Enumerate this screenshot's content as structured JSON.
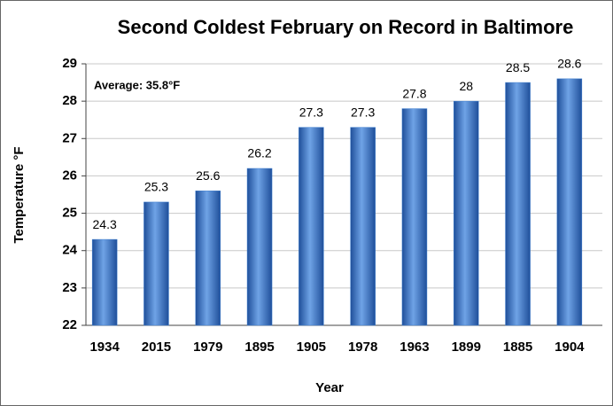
{
  "chart_data": {
    "type": "bar",
    "title": "Second Coldest February on Record in Baltimore",
    "annotation": "Average: 35.8°F",
    "x_label": "Year",
    "y_label": "Temperature °F",
    "categories": [
      "1934",
      "2015",
      "1979",
      "1895",
      "1905",
      "1978",
      "1963",
      "1899",
      "1885",
      "1904"
    ],
    "values": [
      24.3,
      25.3,
      25.6,
      26.2,
      27.3,
      27.3,
      27.8,
      28,
      28.5,
      28.6
    ],
    "color": "#3f7fcf",
    "ylim": [
      22,
      29
    ],
    "yticks": [
      22,
      23,
      24,
      25,
      26,
      27,
      28,
      29
    ],
    "grid": true
  }
}
